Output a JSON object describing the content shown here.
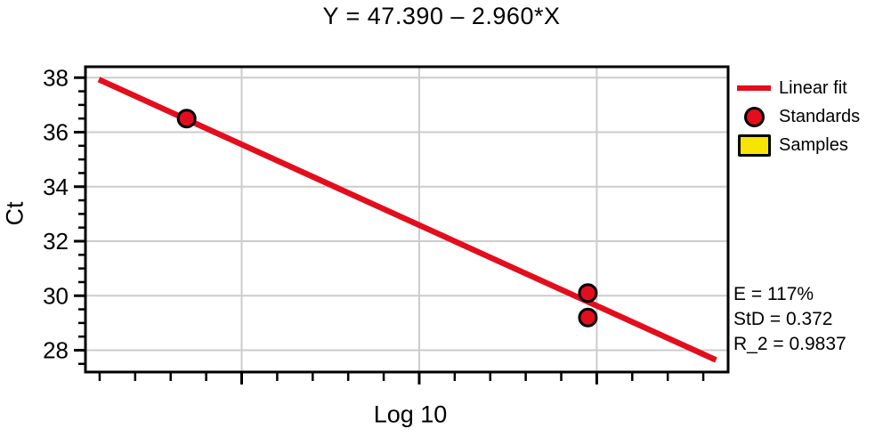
{
  "chart_data": {
    "type": "scatter",
    "title": "Y = 47.390 – 2.960*X",
    "xlabel": "Log 10",
    "ylabel": "Ct",
    "xlim": [
      3.12,
      6.74
    ],
    "ylim": [
      27.2,
      38.4
    ],
    "grid": true,
    "x_major_ticks": [
      4,
      5,
      6
    ],
    "x_minor_step": 0.2,
    "y_major_ticks": [
      38,
      36,
      34,
      32,
      30,
      28
    ],
    "y_minor_step": 0.5,
    "fit_line": {
      "intercept": 47.39,
      "slope": -2.96,
      "x_start": 3.195,
      "x_end": 6.672
    },
    "series": [
      {
        "name": "Standards",
        "marker": "circle",
        "points": [
          {
            "x": 3.69,
            "y": 36.5
          },
          {
            "x": 5.95,
            "y": 30.1
          },
          {
            "x": 5.95,
            "y": 29.2
          }
        ]
      },
      {
        "name": "Samples",
        "marker": "square",
        "points": []
      }
    ],
    "legend": [
      {
        "label": "Linear fit",
        "swatch": "line-swatch"
      },
      {
        "label": "Standards",
        "swatch": "circle-swatch"
      },
      {
        "label": "Samples",
        "swatch": "square-swatch"
      }
    ],
    "legend_position": "right-top",
    "stats": {
      "efficiency": "E = 117%",
      "std": "StD = 0.372",
      "r_squared": "R_2 = 0.9837"
    },
    "colors": {
      "red": "#e30e1d",
      "yellow": "#f8e402",
      "grid": "#cccccc",
      "axis": "#000000"
    }
  }
}
